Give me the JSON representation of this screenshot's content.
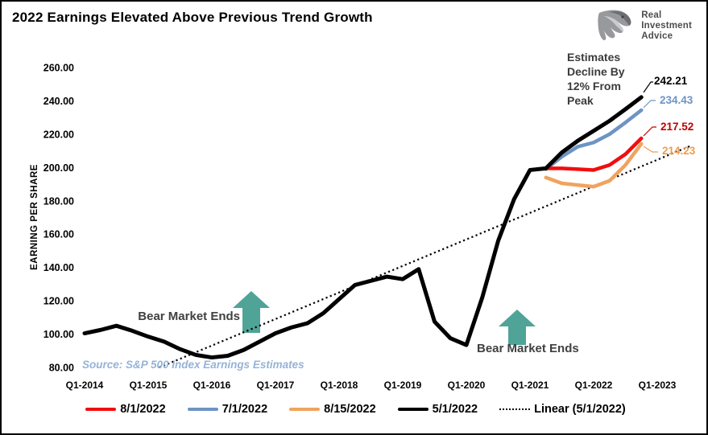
{
  "header": {
    "title": "2022 Earnings Elevated Above Previous Trend Growth"
  },
  "logo": {
    "lines": [
      "Real",
      "Investment",
      "Advice"
    ],
    "icon": "eagle-icon"
  },
  "chart_data": {
    "type": "line",
    "title": "2022 Earnings Elevated Above Previous Trend Growth",
    "xlabel": "",
    "ylabel": "EARNING PER SHARE",
    "ylim": [
      80,
      260
    ],
    "ytick_step": 20,
    "ytick_labels": [
      "260.00",
      "240.00",
      "220.00",
      "200.00",
      "180.00",
      "160.00",
      "140.00",
      "120.00",
      "100.00",
      "80.00"
    ],
    "xtick_labels": [
      "Q1-2014",
      "Q1-2015",
      "Q1-2016",
      "Q1-2017",
      "Q1-2018",
      "Q1-2019",
      "Q1-2020",
      "Q1-2021",
      "Q1-2022",
      "Q1-2023"
    ],
    "x_unit": "quarter (index 0 = Q1-2014, 4 ticks per year)",
    "grid": false,
    "legend_position": "bottom",
    "series": [
      {
        "name": "5/1/2022",
        "type": "line",
        "color": "#000000",
        "label_color": "#000000",
        "start_index": 0,
        "values": [
          100.5,
          102.5,
          105,
          102,
          98.5,
          95.5,
          91,
          87.5,
          86,
          87,
          90.5,
          95.5,
          100.5,
          104,
          106.5,
          112.5,
          121,
          129.5,
          132,
          134.5,
          133,
          139,
          107.5,
          97.5,
          93.5,
          122,
          156,
          181,
          198.5,
          199.5,
          209,
          216,
          222,
          228,
          235,
          242.21
        ],
        "end_label": "242.21"
      },
      {
        "name": "7/1/2022",
        "type": "line",
        "color": "#6D94C4",
        "label_color": "#6D94C4",
        "start_index": 29,
        "values": [
          199,
          206.5,
          212.5,
          215,
          220,
          227,
          234.43
        ],
        "end_label": "234.43"
      },
      {
        "name": "8/1/2022",
        "type": "line",
        "color": "#F10E0E",
        "label_color": "#C00000",
        "start_index": 29,
        "values": [
          199.5,
          199.5,
          199,
          198.5,
          201.5,
          208,
          217.52
        ],
        "end_label": "217.52"
      },
      {
        "name": "8/15/2022",
        "type": "line",
        "color": "#F0A35E",
        "label_color": "#ED9C4F",
        "start_index": 29,
        "values": [
          194,
          190.5,
          189.5,
          188.5,
          192,
          201.5,
          214.23
        ],
        "end_label": "214.23"
      },
      {
        "name": "Linear (5/1/2022)",
        "type": "trendline",
        "style": "dotted",
        "color": "#000000",
        "trend_from": {
          "i": 4.7,
          "v": 80
        },
        "trend_to": {
          "i": 38.1,
          "v": 213
        }
      }
    ],
    "legend": [
      "8/1/2022",
      "7/1/2022",
      "8/15/2022",
      "5/1/2022",
      "Linear (5/1/2022)"
    ],
    "annotations": {
      "estimates_note": {
        "lines": [
          "Estimates",
          "Decline By",
          "12% From",
          "Peak"
        ]
      },
      "bear_market_1": {
        "label": "Bear Market Ends"
      },
      "bear_market_2": {
        "label": "Bear Market Ends"
      },
      "source": "Source: S&P 500 Index Earnings Estimates"
    },
    "colors": {
      "arrow": "#4FA497",
      "annotation_text": "#3B3B3B",
      "bear_text": "#404040",
      "source_text": "#95B3D7"
    }
  },
  "legend_items": [
    {
      "label": "8/1/2022",
      "color": "#F10E0E",
      "style": "solid"
    },
    {
      "label": "7/1/2022",
      "color": "#6D94C4",
      "style": "solid"
    },
    {
      "label": "8/15/2022",
      "color": "#F0A35E",
      "style": "solid"
    },
    {
      "label": "5/1/2022",
      "color": "#000000",
      "style": "solid"
    },
    {
      "label": "Linear (5/1/2022)",
      "color": "#000000",
      "style": "dotted"
    }
  ]
}
